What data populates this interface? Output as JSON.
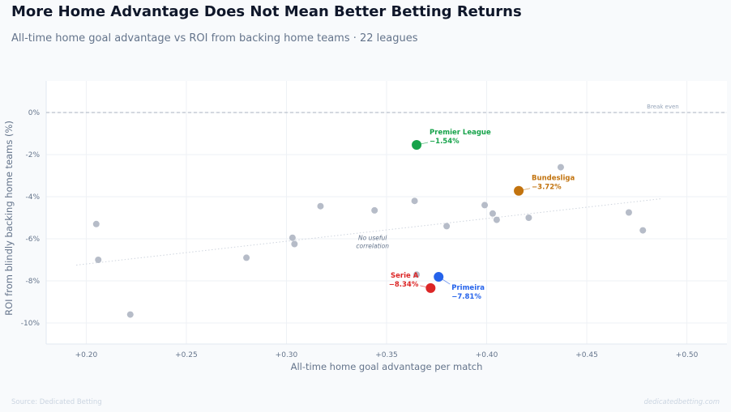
{
  "title": "More Home Advantage Does Not Mean Better Betting Returns",
  "subtitle": "All-time home goal advantage vs ROI from backing home teams · 22 leagues",
  "footer": {
    "source": "Source: Dedicated Betting",
    "site": "dedicatedbetting.com"
  },
  "chart_data": {
    "type": "scatter",
    "xlabel": "All-time home goal advantage per match",
    "ylabel": "ROI from blindly backing home teams (%)",
    "xlim": [
      0.18,
      0.52
    ],
    "ylim": [
      -11,
      1.5
    ],
    "x_ticks": [
      0.2,
      0.25,
      0.3,
      0.35,
      0.4,
      0.45,
      0.5
    ],
    "x_tick_labels": [
      "+0.20",
      "+0.25",
      "+0.30",
      "+0.35",
      "+0.40",
      "+0.45",
      "+0.50"
    ],
    "y_ticks": [
      0,
      -2,
      -4,
      -6,
      -8,
      -10
    ],
    "y_tick_labels": [
      "0%",
      "-2%",
      "-4%",
      "-6%",
      "-8%",
      "-10%"
    ],
    "grid": true,
    "reference_line": {
      "y": 0,
      "label": "Break even"
    },
    "trend_line": {
      "x": [
        0.195,
        0.487
      ],
      "y": [
        -7.25,
        -4.1
      ],
      "label": [
        "No useful",
        "correlation"
      ]
    },
    "colors": {
      "other": "#b6bcc8",
      "premier_league": "#16a34a",
      "bundesliga": "#c2730e",
      "primeira": "#2563eb",
      "serie_a": "#dc2626"
    },
    "points": [
      {
        "x": 0.205,
        "y": -5.3
      },
      {
        "x": 0.206,
        "y": -7.0
      },
      {
        "x": 0.222,
        "y": -9.6
      },
      {
        "x": 0.28,
        "y": -6.9
      },
      {
        "x": 0.303,
        "y": -5.95
      },
      {
        "x": 0.304,
        "y": -6.25
      },
      {
        "x": 0.317,
        "y": -4.45
      },
      {
        "x": 0.344,
        "y": -4.65
      },
      {
        "x": 0.364,
        "y": -4.2
      },
      {
        "x": 0.365,
        "y": -7.7
      },
      {
        "x": 0.38,
        "y": -5.4
      },
      {
        "x": 0.399,
        "y": -4.4
      },
      {
        "x": 0.403,
        "y": -4.8
      },
      {
        "x": 0.405,
        "y": -5.1
      },
      {
        "x": 0.421,
        "y": -5.0
      },
      {
        "x": 0.437,
        "y": -2.6
      },
      {
        "x": 0.471,
        "y": -4.75
      },
      {
        "x": 0.478,
        "y": -5.6
      }
    ],
    "highlights": [
      {
        "key": "premier_league",
        "name": "Premier League",
        "value_label": "−1.54%",
        "x": 0.365,
        "y": -1.54,
        "label_side": "right"
      },
      {
        "key": "bundesliga",
        "name": "Bundesliga",
        "value_label": "−3.72%",
        "x": 0.416,
        "y": -3.72,
        "label_side": "right"
      },
      {
        "key": "primeira",
        "name": "Primeira",
        "value_label": "−7.81%",
        "x": 0.376,
        "y": -7.81,
        "label_side": "right-below"
      },
      {
        "key": "serie_a",
        "name": "Serie A",
        "value_label": "−8.34%",
        "x": 0.372,
        "y": -8.34,
        "label_side": "left"
      }
    ]
  }
}
